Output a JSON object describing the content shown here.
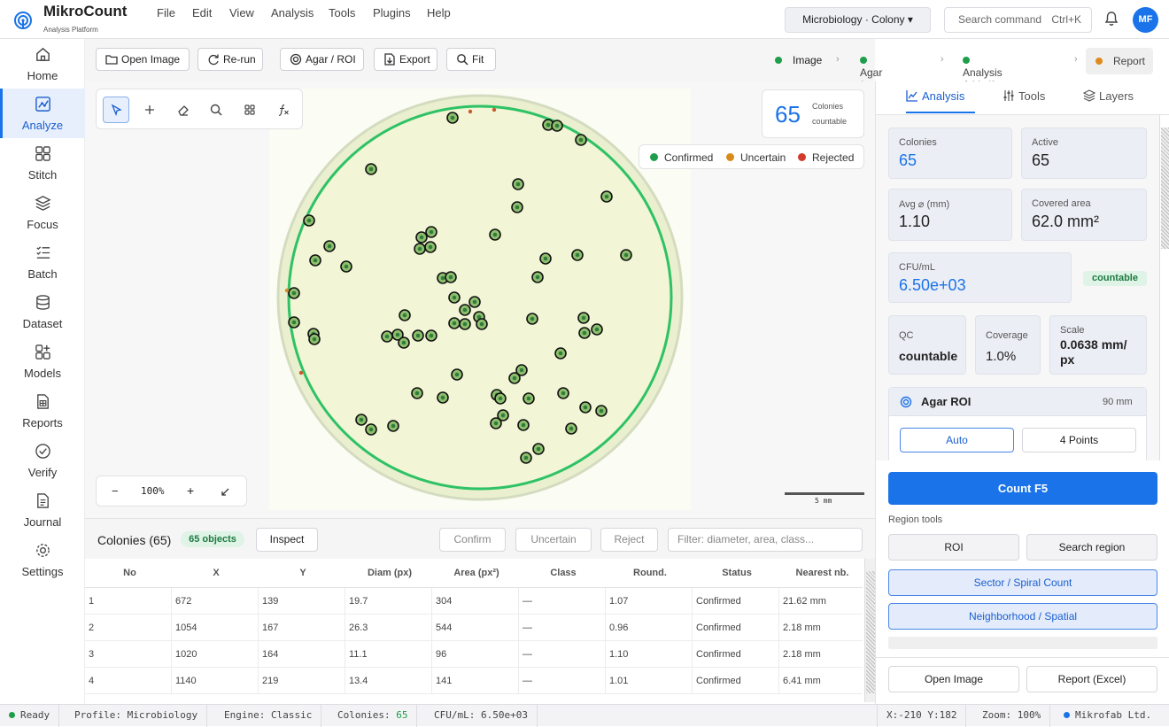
{
  "app": {
    "name": "MikroCount",
    "subtitle": "Analysis Platform"
  },
  "menu": [
    "File",
    "Edit",
    "View",
    "Analysis",
    "Tools",
    "Plugins",
    "Help"
  ],
  "workspace": {
    "label": "Microbiology · Colony ▾"
  },
  "command": {
    "placeholder": "Search command",
    "shortcut": "Ctrl+K"
  },
  "user": {
    "initials": "MF"
  },
  "sidebar": {
    "items": [
      {
        "label": "Home",
        "icon": "home-icon"
      },
      {
        "label": "Analyze",
        "icon": "analyze-icon",
        "active": true
      },
      {
        "label": "Stitch",
        "icon": "stitch-icon"
      },
      {
        "label": "Focus",
        "icon": "focus-icon"
      },
      {
        "label": "Batch",
        "icon": "batch-icon"
      },
      {
        "label": "Dataset",
        "icon": "dataset-icon"
      },
      {
        "label": "Models",
        "icon": "models-icon"
      },
      {
        "label": "Reports",
        "icon": "reports-icon"
      },
      {
        "label": "Verify",
        "icon": "verify-icon"
      },
      {
        "label": "Journal",
        "icon": "journal-icon"
      },
      {
        "label": "Settings",
        "icon": "settings-icon"
      }
    ]
  },
  "toolbar": {
    "open": "Open Image",
    "rerun": "Re-run",
    "agar": "Agar / ROI",
    "export": "Export",
    "fit": "Fit"
  },
  "steps": [
    {
      "label": "Image",
      "color": "#1e9e4a"
    },
    {
      "label": "Agar / ROI",
      "color": "#1e9e4a"
    },
    {
      "label": "Analysis & Verify",
      "color": "#1e9e4a"
    },
    {
      "label": "Report",
      "color": "#e08a1e"
    }
  ],
  "canvas": {
    "count": "65",
    "count_l1": "Colonies",
    "count_l2": "countable",
    "legend": [
      {
        "label": "Confirmed",
        "color": "#1e9e4a"
      },
      {
        "label": "Uncertain",
        "color": "#d98a1a"
      },
      {
        "label": "Rejected",
        "color": "#d23a2a"
      }
    ],
    "zoom": "100%",
    "zoom_minus": "−",
    "zoom_plus": "+",
    "scale_label": "5 mm"
  },
  "colonies_panel": {
    "title": "Colonies (65)",
    "badge": "65 objects",
    "inspect": "Inspect",
    "confirm": "Confirm",
    "uncertain": "Uncertain",
    "reject": "Reject",
    "filter_placeholder": "Filter: diameter, area, class..."
  },
  "table": {
    "headers": [
      "No",
      "X",
      "Y",
      "Diam (px)",
      "Area (px²)",
      "Class",
      "Round.",
      "Status",
      "Nearest nb."
    ],
    "rows": [
      [
        "1",
        "672",
        "139",
        "19.7",
        "304",
        "—",
        "1.07",
        "Confirmed",
        "21.62 mm"
      ],
      [
        "2",
        "1054",
        "167",
        "26.3",
        "544",
        "—",
        "0.96",
        "Confirmed",
        "2.18 mm"
      ],
      [
        "3",
        "1020",
        "164",
        "11.1",
        "96",
        "—",
        "1.10",
        "Confirmed",
        "2.18 mm"
      ],
      [
        "4",
        "1140",
        "219",
        "13.4",
        "141",
        "—",
        "1.01",
        "Confirmed",
        "6.41 mm"
      ]
    ]
  },
  "right": {
    "tabs": [
      "Analysis",
      "Tools",
      "Layers"
    ],
    "colonies": {
      "k": "Colonies",
      "v": "65"
    },
    "active": {
      "k": "Active",
      "v": "65"
    },
    "avg": {
      "k": "Avg ⌀ (mm)",
      "v": "1.10"
    },
    "covered": {
      "k": "Covered area",
      "v": "62.0 mm²"
    },
    "cfu": {
      "k": "CFU/mL",
      "v": "6.50e+03",
      "badge": "countable"
    },
    "qc": {
      "k": "QC",
      "v": "countable"
    },
    "coverage": {
      "k": "Coverage",
      "v": "1.0%"
    },
    "scale": {
      "k": "Scale",
      "v1": "0.0638 mm/",
      "v2": "px"
    },
    "roi": {
      "title": "Agar ROI",
      "size": "90 mm",
      "auto": "Auto",
      "points": "4 Points"
    },
    "count_btn": "Count  F5",
    "region_label": "Region tools",
    "roi_btn": "ROI",
    "search_region": "Search region",
    "sector": "Sector / Spiral Count",
    "neighborhood": "Neighborhood / Spatial",
    "open_image": "Open Image",
    "report_excel": "Report (Excel)"
  },
  "status": {
    "ready": "Ready",
    "profile": "Profile: Microbiology",
    "engine": "Engine: Classic",
    "colonies_label": "Colonies: ",
    "colonies_value": "65",
    "cfu": "CFU/mL: 6.50e+03",
    "coords": "X:-210 Y:182",
    "zoom": "Zoom: 100%",
    "company": "Mikrofab Ltd."
  }
}
